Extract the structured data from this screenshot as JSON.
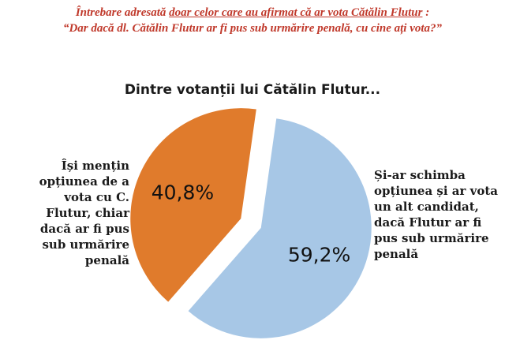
{
  "question": {
    "prefix": "Întrebare adresată",
    "underlined": "doar celor care au afirmat că ar vota Cătălin Flutur",
    "colon": ":",
    "line2": "“Dar dacă dl. Cătălin Flutur ar fi pus sub urmărire penală, cu cine ați vota?”"
  },
  "colors": {
    "question": "#c0392b",
    "slice_stay": "#e07b2c",
    "slice_change": "#a7c7e6"
  },
  "chart_data": {
    "type": "pie",
    "title": "Dintre votanții lui Cătălin Flutur...",
    "slices": [
      {
        "category": "Și-ar schimba opțiunea și ar vota un alt candidat, dacă Flutur ar fi pus sub urmărire penală",
        "value": 59.2,
        "label": "59,2%",
        "color": "#a7c7e6"
      },
      {
        "category": "Își mențin opțiunea de a vota cu C. Flutur, chiar dacă ar fi pus sub urmărire penală",
        "value": 40.8,
        "label": "40,8%",
        "color": "#e07b2c"
      }
    ]
  }
}
